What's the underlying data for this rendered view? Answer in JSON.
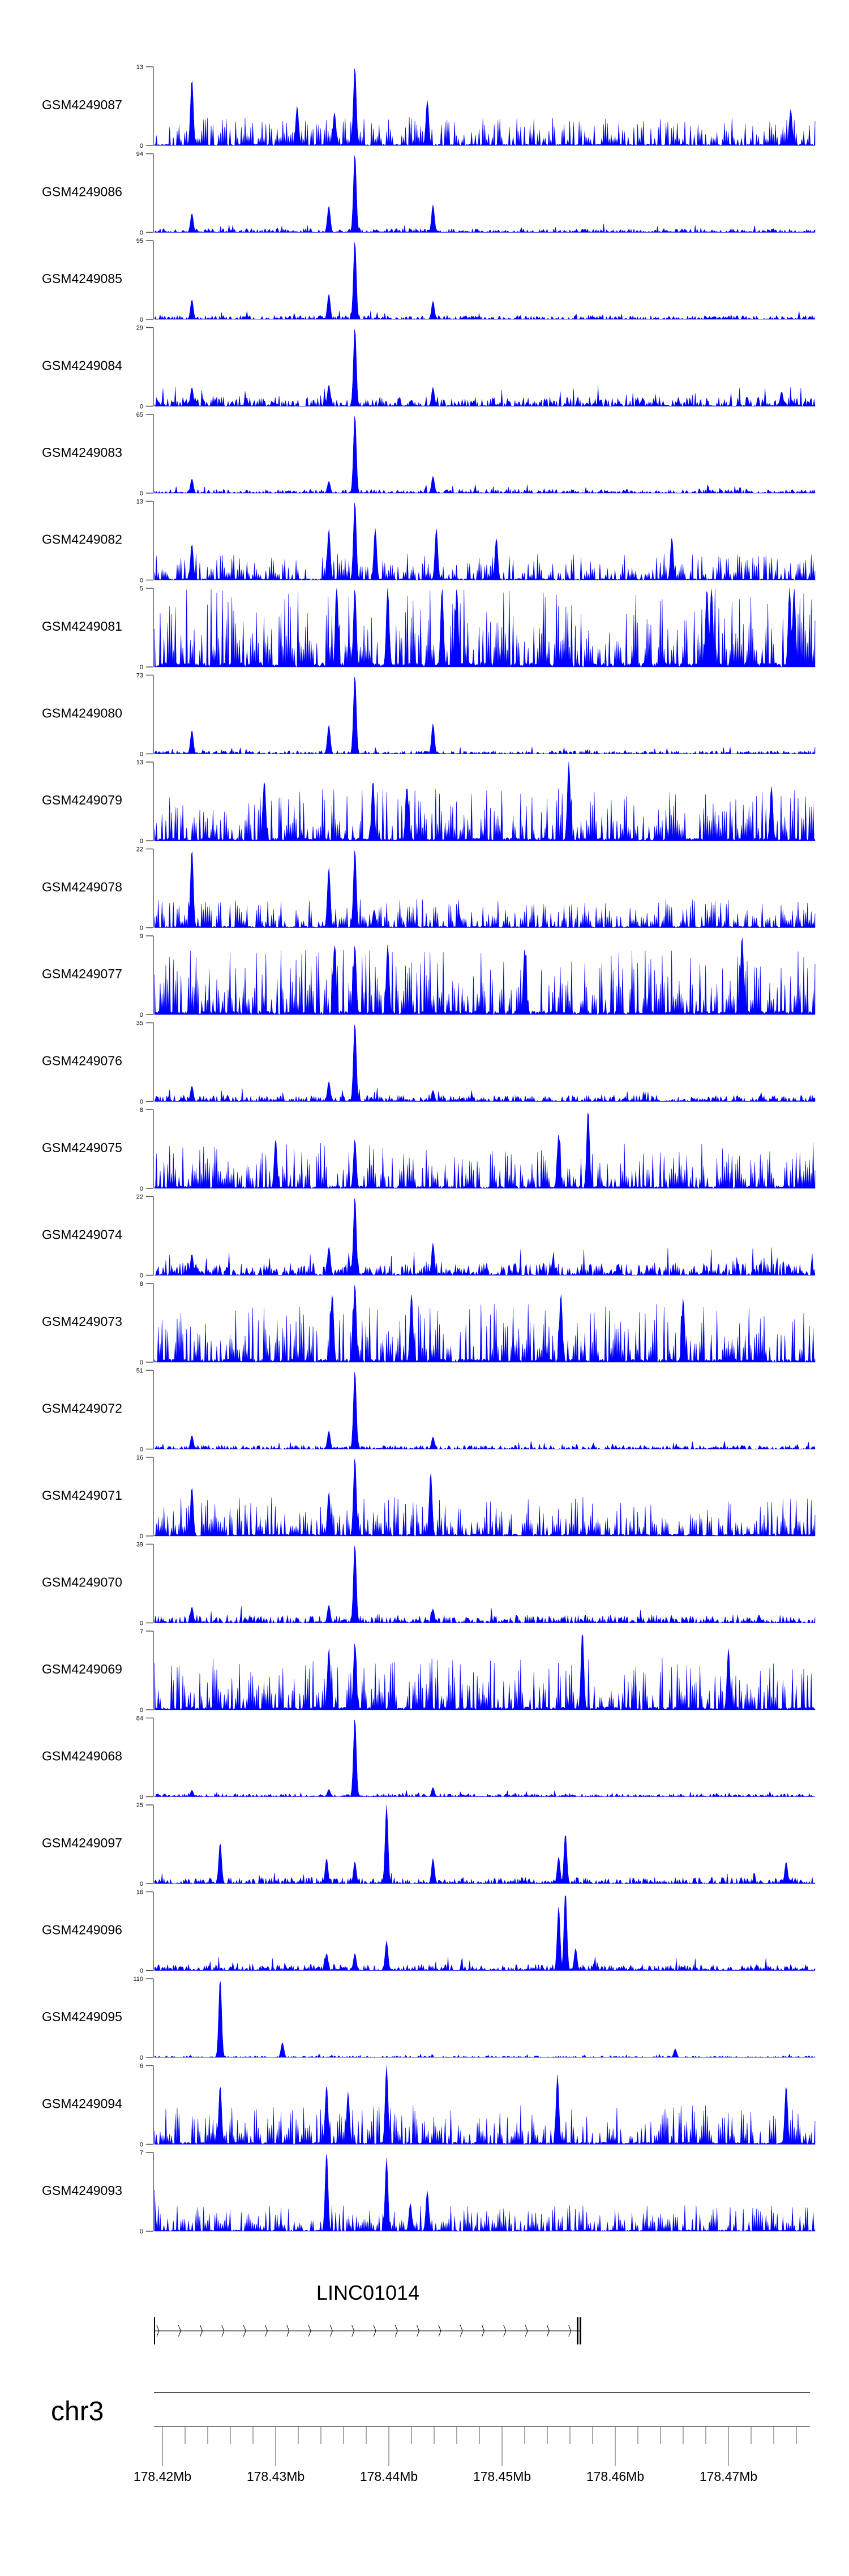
{
  "chart_data": {
    "type": "area",
    "title": "",
    "xlabel": "",
    "ylabel": "",
    "chromosome": "chr3",
    "xlim_mb": [
      178.4192,
      178.47765
    ],
    "x_ticks_mb": [
      178.42,
      178.43,
      178.44,
      178.45,
      178.46,
      178.47
    ],
    "x_tick_labels": [
      "178.42Mb",
      "178.43Mb",
      "178.44Mb",
      "178.45Mb",
      "178.46Mb",
      "178.47Mb"
    ],
    "minor_tick_step_mb": 0.002,
    "fill_color": "#0000FF",
    "tracks": [
      {
        "name": "GSM4249087",
        "ymax": 13,
        "ymin": 0,
        "style": "spiky",
        "noise": 0.22,
        "peaks": [
          [
            178.4226,
            11
          ],
          [
            178.437,
            13
          ],
          [
            178.4352,
            5.5
          ],
          [
            178.4319,
            6.5
          ],
          [
            178.4434,
            7.5
          ],
          [
            178.4755,
            6
          ]
        ]
      },
      {
        "name": "GSM4249086",
        "ymax": 94,
        "ymin": 0,
        "style": "smooth",
        "noise": 0.05,
        "peaks": [
          [
            178.4226,
            23
          ],
          [
            178.4347,
            32
          ],
          [
            178.437,
            94
          ],
          [
            178.4439,
            33
          ]
        ]
      },
      {
        "name": "GSM4249085",
        "ymax": 95,
        "ymin": 0,
        "style": "smooth",
        "noise": 0.05,
        "peaks": [
          [
            178.4226,
            24
          ],
          [
            178.4347,
            31
          ],
          [
            178.437,
            95
          ],
          [
            178.4439,
            22
          ]
        ]
      },
      {
        "name": "GSM4249084",
        "ymax": 29,
        "ymin": 0,
        "style": "smooth",
        "noise": 0.12,
        "peaks": [
          [
            178.4226,
            7
          ],
          [
            178.4347,
            8
          ],
          [
            178.437,
            29
          ],
          [
            178.4439,
            7
          ],
          [
            178.4747,
            5.5
          ]
        ]
      },
      {
        "name": "GSM4249083",
        "ymax": 65,
        "ymin": 0,
        "style": "smooth",
        "noise": 0.05,
        "peaks": [
          [
            178.4226,
            12
          ],
          [
            178.4347,
            10
          ],
          [
            178.437,
            65
          ],
          [
            178.4439,
            14
          ]
        ]
      },
      {
        "name": "GSM4249082",
        "ymax": 13,
        "ymin": 0,
        "style": "spiky",
        "noise": 0.2,
        "peaks": [
          [
            178.437,
            13
          ],
          [
            178.4347,
            8.5
          ],
          [
            178.4388,
            8.5
          ],
          [
            178.4442,
            8.5
          ],
          [
            178.4495,
            7
          ],
          [
            178.465,
            7
          ],
          [
            178.4226,
            6
          ]
        ]
      },
      {
        "name": "GSM4249081",
        "ymax": 5,
        "ymin": 0,
        "style": "spiky",
        "noise": 0.6,
        "peaks": [
          [
            178.4354,
            5
          ],
          [
            178.437,
            5
          ],
          [
            178.4399,
            5
          ],
          [
            178.4447,
            5
          ],
          [
            178.446,
            5
          ],
          [
            178.4681,
            5
          ],
          [
            178.4685,
            5
          ],
          [
            178.4754,
            5
          ],
          [
            178.4758,
            5
          ]
        ]
      },
      {
        "name": "GSM4249080",
        "ymax": 73,
        "ymin": 0,
        "style": "smooth",
        "noise": 0.04,
        "peaks": [
          [
            178.4226,
            22
          ],
          [
            178.4347,
            27
          ],
          [
            178.437,
            73
          ],
          [
            178.4439,
            28
          ]
        ]
      },
      {
        "name": "GSM4249079",
        "ymax": 13,
        "ymin": 0,
        "style": "spiky",
        "noise": 0.4,
        "peaks": [
          [
            178.4559,
            13
          ],
          [
            178.429,
            10
          ],
          [
            178.4386,
            10
          ],
          [
            178.4416,
            9
          ],
          [
            178.4738,
            9
          ]
        ]
      },
      {
        "name": "GSM4249078",
        "ymax": 22,
        "ymin": 0,
        "style": "spiky",
        "noise": 0.22,
        "peaks": [
          [
            178.4226,
            22
          ],
          [
            178.4347,
            17
          ],
          [
            178.437,
            22
          ],
          [
            178.4462,
            4
          ],
          [
            178.4387,
            5
          ]
        ]
      },
      {
        "name": "GSM4249077",
        "ymax": 9,
        "ymin": 0,
        "style": "spiky",
        "noise": 0.5,
        "peaks": [
          [
            178.4712,
            9
          ],
          [
            178.437,
            8
          ],
          [
            178.4399,
            8
          ],
          [
            178.4352,
            8
          ],
          [
            178.452,
            7.5
          ]
        ]
      },
      {
        "name": "GSM4249076",
        "ymax": 35,
        "ymin": 0,
        "style": "smooth",
        "noise": 0.08,
        "peaks": [
          [
            178.4226,
            7
          ],
          [
            178.4347,
            9
          ],
          [
            178.437,
            35
          ],
          [
            178.4439,
            5
          ]
        ]
      },
      {
        "name": "GSM4249075",
        "ymax": 8,
        "ymin": 0,
        "style": "spiky",
        "noise": 0.35,
        "peaks": [
          [
            178.4576,
            8
          ],
          [
            178.437,
            5
          ],
          [
            178.455,
            5.5
          ],
          [
            178.43,
            5
          ]
        ]
      },
      {
        "name": "GSM4249074",
        "ymax": 22,
        "ymin": 0,
        "style": "smooth",
        "noise": 0.16,
        "peaks": [
          [
            178.4226,
            6
          ],
          [
            178.4347,
            8
          ],
          [
            178.437,
            22
          ],
          [
            178.4439,
            9
          ]
        ]
      },
      {
        "name": "GSM4249073",
        "ymax": 8,
        "ymin": 0,
        "style": "spiky",
        "noise": 0.45,
        "peaks": [
          [
            178.437,
            8
          ],
          [
            178.435,
            7
          ],
          [
            178.442,
            7
          ],
          [
            178.4552,
            7
          ],
          [
            178.466,
            6.5
          ]
        ]
      },
      {
        "name": "GSM4249072",
        "ymax": 51,
        "ymin": 0,
        "style": "smooth",
        "noise": 0.05,
        "peaks": [
          [
            178.4226,
            9
          ],
          [
            178.4347,
            12
          ],
          [
            178.437,
            51
          ],
          [
            178.4439,
            8
          ]
        ]
      },
      {
        "name": "GSM4249071",
        "ymax": 16,
        "ymin": 0,
        "style": "spiky",
        "noise": 0.3,
        "peaks": [
          [
            178.437,
            16
          ],
          [
            178.4437,
            13
          ],
          [
            178.4226,
            10
          ],
          [
            178.4347,
            9
          ]
        ]
      },
      {
        "name": "GSM4249070",
        "ymax": 39,
        "ymin": 0,
        "style": "smooth",
        "noise": 0.1,
        "peaks": [
          [
            178.4226,
            8
          ],
          [
            178.4347,
            9
          ],
          [
            178.437,
            39
          ],
          [
            178.4439,
            7
          ]
        ]
      },
      {
        "name": "GSM4249069",
        "ymax": 7,
        "ymin": 0,
        "style": "spiky",
        "noise": 0.4,
        "peaks": [
          [
            178.4571,
            7
          ],
          [
            178.437,
            6
          ],
          [
            178.4347,
            5.5
          ],
          [
            178.47,
            5.5
          ]
        ]
      },
      {
        "name": "GSM4249068",
        "ymax": 84,
        "ymin": 0,
        "style": "smooth",
        "noise": 0.04,
        "peaks": [
          [
            178.437,
            84
          ],
          [
            178.4226,
            7
          ],
          [
            178.4439,
            10
          ],
          [
            178.4347,
            8
          ]
        ]
      },
      {
        "name": "GSM4249097",
        "ymax": 25,
        "ymin": 0,
        "style": "smooth",
        "noise": 0.08,
        "peaks": [
          [
            178.4251,
            13
          ],
          [
            178.4345,
            8
          ],
          [
            178.437,
            7
          ],
          [
            178.4398,
            25
          ],
          [
            178.4439,
            8
          ],
          [
            178.455,
            8.5
          ],
          [
            178.4556,
            16
          ],
          [
            178.4751,
            7
          ]
        ]
      },
      {
        "name": "GSM4249096",
        "ymax": 16,
        "ymin": 0,
        "style": "smooth",
        "noise": 0.08,
        "peaks": [
          [
            178.455,
            13
          ],
          [
            178.4556,
            16
          ],
          [
            178.4398,
            6
          ],
          [
            178.4565,
            4.5
          ],
          [
            178.4345,
            3.5
          ],
          [
            178.437,
            3.5
          ]
        ]
      },
      {
        "name": "GSM4249095",
        "ymax": 110,
        "ymin": 0,
        "style": "smooth",
        "noise": 0.02,
        "peaks": [
          [
            178.4251,
            110
          ],
          [
            178.4306,
            21
          ],
          [
            178.4653,
            12
          ]
        ]
      },
      {
        "name": "GSM4249094",
        "ymax": 6,
        "ymin": 0,
        "style": "spiky",
        "noise": 0.3,
        "peaks": [
          [
            178.4251,
            4.5
          ],
          [
            178.4345,
            4.5
          ],
          [
            178.4398,
            6
          ],
          [
            178.4549,
            5.3
          ],
          [
            178.4751,
            4.5
          ],
          [
            178.4364,
            4
          ]
        ]
      },
      {
        "name": "GSM4249093",
        "ymax": 7,
        "ymin": 0,
        "style": "spiky",
        "noise": 0.2,
        "peaks": [
          [
            178.4345,
            7
          ],
          [
            178.4398,
            6.5
          ],
          [
            178.4434,
            3.6
          ],
          [
            178.4419,
            2.5
          ],
          [
            178.4192,
            5
          ]
        ]
      }
    ],
    "gene": {
      "name": "LINC01014",
      "strand": "+",
      "start_mb": 178.4193,
      "end_mb": 178.4569
    }
  }
}
